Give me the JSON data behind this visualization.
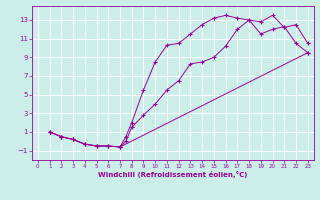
{
  "xlabel": "Windchill (Refroidissement éolien,°C)",
  "background_color": "#cceee8",
  "grid_color": "#ffffff",
  "line_color": "#990099",
  "xlim": [
    -0.5,
    23.5
  ],
  "ylim": [
    -2.0,
    14.5
  ],
  "xticks": [
    0,
    1,
    2,
    3,
    4,
    5,
    6,
    7,
    8,
    9,
    10,
    11,
    12,
    13,
    14,
    15,
    16,
    17,
    18,
    19,
    20,
    21,
    22,
    23
  ],
  "yticks": [
    -1,
    1,
    3,
    5,
    7,
    9,
    11,
    13
  ],
  "line1_x": [
    1,
    2,
    3,
    4,
    5,
    6,
    7,
    7.5,
    8,
    9,
    10,
    11,
    12,
    13,
    14,
    15,
    16,
    17,
    18,
    19,
    20,
    21,
    22,
    23
  ],
  "line1_y": [
    1,
    0.5,
    0.2,
    -0.3,
    -0.5,
    -0.5,
    -0.6,
    0.5,
    2.0,
    5.5,
    8.5,
    10.3,
    10.5,
    11.5,
    12.5,
    13.2,
    13.5,
    13.2,
    13.0,
    11.5,
    12.0,
    12.3,
    10.5,
    9.5
  ],
  "line2_x": [
    1,
    2,
    3,
    4,
    5,
    6,
    7,
    7.5,
    8,
    9,
    10,
    11,
    12,
    13,
    14,
    15,
    16,
    17,
    18,
    19,
    20,
    21,
    22,
    23
  ],
  "line2_y": [
    1,
    0.5,
    0.2,
    -0.3,
    -0.5,
    -0.5,
    -0.6,
    0.0,
    1.5,
    2.8,
    4.0,
    5.5,
    6.5,
    8.3,
    8.5,
    9.0,
    10.2,
    12.0,
    13.0,
    12.8,
    13.5,
    12.2,
    12.5,
    10.5
  ],
  "line3_x": [
    1,
    2,
    3,
    4,
    5,
    6,
    7,
    23
  ],
  "line3_y": [
    1,
    0.5,
    0.2,
    -0.3,
    -0.5,
    -0.5,
    -0.6,
    9.5
  ]
}
